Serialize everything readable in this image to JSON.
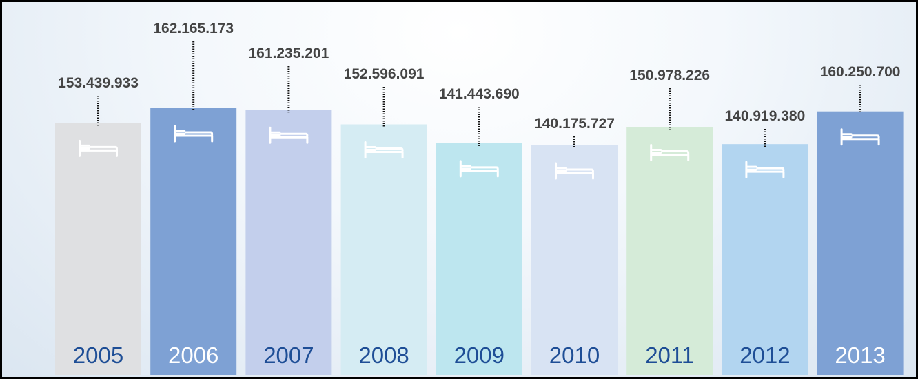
{
  "chart_data": {
    "type": "bar",
    "title": "",
    "xlabel": "",
    "ylabel": "",
    "categories": [
      "2005",
      "2006",
      "2007",
      "2008",
      "2009",
      "2010",
      "2011",
      "2012",
      "2013"
    ],
    "values": [
      153439933,
      162165173,
      161235201,
      152596091,
      141443690,
      140175727,
      150978226,
      140919380,
      160250700
    ],
    "value_labels": [
      "153.439.933",
      "162.165.173",
      "161.235.201",
      "152.596.091",
      "141.443.690",
      "140.175.727",
      "150.978.226",
      "140.919.380",
      "160.250.700"
    ],
    "bar_colors": [
      "#dfe0e2",
      "#7ea1d4",
      "#c3cfec",
      "#d5ecf3",
      "#bde6ef",
      "#d8e3f3",
      "#d5ebd8",
      "#b2d5f0",
      "#7ea1d4"
    ],
    "year_label_colors": [
      "#1e4e96",
      "#ffffff",
      "#1e4e96",
      "#1e4e96",
      "#1e4e96",
      "#1e4e96",
      "#1e4e96",
      "#1e4e96",
      "#ffffff"
    ],
    "icon": "bed-icon",
    "grid": false,
    "legend": "none"
  }
}
